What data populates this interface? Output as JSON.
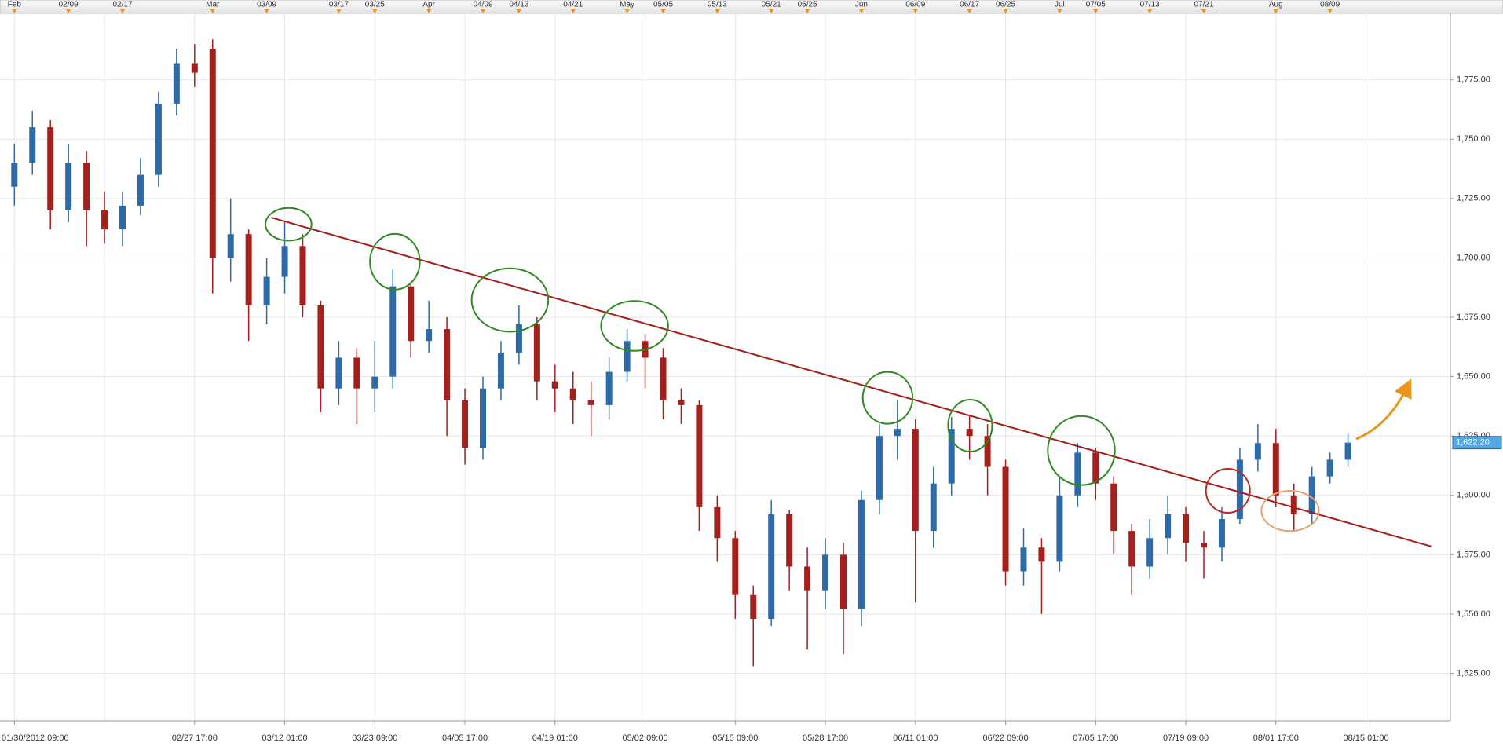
{
  "chart_data": {
    "type": "candlestick",
    "categories": [
      "01/30/2012 09:00",
      null,
      null,
      null,
      null,
      null,
      null,
      null,
      null,
      null,
      "02/27 17:00",
      null,
      null,
      null,
      null,
      "03/12 01:00",
      null,
      null,
      null,
      null,
      "03/23 09:00",
      null,
      null,
      null,
      null,
      "04/05 17:00",
      null,
      null,
      null,
      null,
      "04/19 01:00",
      null,
      null,
      null,
      null,
      "05/02 09:00",
      null,
      null,
      null,
      null,
      "05/15 09:00",
      null,
      null,
      null,
      null,
      "05/28 17:00",
      null,
      null,
      null,
      null,
      "06/11 01:00",
      null,
      null,
      null,
      null,
      "06/22 09:00",
      null,
      null,
      null,
      null,
      "07/05 17:00",
      null,
      null,
      null,
      null,
      "07/19 09:00",
      null,
      null,
      null,
      null,
      "08/01 17:00",
      null,
      null,
      null,
      null,
      "08/15 01:00",
      null,
      null,
      null,
      null
    ],
    "top_categories": [
      "Feb",
      null,
      null,
      "02/09",
      null,
      null,
      "02/17",
      null,
      null,
      null,
      null,
      "Mar",
      null,
      null,
      "03/09",
      null,
      null,
      null,
      "03/17",
      null,
      "03/25",
      null,
      null,
      "Apr",
      null,
      null,
      "04/09",
      null,
      "04/13",
      null,
      null,
      "04/21",
      null,
      null,
      "May",
      null,
      "05/05",
      null,
      null,
      "05/13",
      null,
      null,
      "05/21",
      null,
      "05/25",
      null,
      null,
      "Jun",
      null,
      null,
      "06/09",
      null,
      null,
      "06/17",
      null,
      "06/25",
      null,
      null,
      "Jul",
      null,
      "07/05",
      null,
      null,
      "07/13",
      null,
      null,
      "07/21",
      null,
      null,
      null,
      "Aug",
      null,
      null,
      "08/09",
      null,
      null,
      null,
      null,
      null,
      null
    ],
    "open": [
      1730,
      1740,
      1755,
      1720,
      1740,
      1720,
      1712,
      1722,
      1735,
      1765,
      1782,
      1788,
      1700,
      1710,
      1680,
      1692,
      1705,
      1680,
      1645,
      1658,
      1645,
      1650,
      1688,
      1665,
      1670,
      1640,
      1620,
      1645,
      1660,
      1672,
      1648,
      1645,
      1640,
      1638,
      1652,
      1665,
      1658,
      1640,
      1638,
      1595,
      1582,
      1558,
      1548,
      1592,
      1570,
      1560,
      1575,
      1552,
      1598,
      1625,
      1628,
      1585,
      1605,
      1628,
      1625,
      1612,
      1568,
      1578,
      1572,
      1600,
      1618,
      1605,
      1585,
      1570,
      1582,
      1592,
      1580,
      1578,
      1590,
      1615,
      1622,
      1600,
      1592,
      1608,
      1615,
      null,
      null,
      null,
      null,
      null
    ],
    "high": [
      1748,
      1762,
      1758,
      1748,
      1745,
      1728,
      1728,
      1742,
      1770,
      1788,
      1790,
      1792,
      1725,
      1712,
      1700,
      1715,
      1710,
      1682,
      1665,
      1662,
      1665,
      1695,
      1690,
      1682,
      1675,
      1645,
      1650,
      1665,
      1680,
      1675,
      1655,
      1652,
      1648,
      1658,
      1670,
      1668,
      1662,
      1645,
      1640,
      1600,
      1585,
      1562,
      1598,
      1594,
      1578,
      1582,
      1580,
      1602,
      1630,
      1640,
      1632,
      1612,
      1633,
      1634,
      1630,
      1615,
      1586,
      1582,
      1608,
      1622,
      1620,
      1608,
      1588,
      1590,
      1600,
      1595,
      1585,
      1595,
      1620,
      1630,
      1628,
      1605,
      1612,
      1618,
      1626,
      null,
      null,
      null,
      null,
      null
    ],
    "low": [
      1722,
      1735,
      1712,
      1715,
      1705,
      1706,
      1705,
      1718,
      1730,
      1760,
      1772,
      1685,
      1690,
      1665,
      1672,
      1685,
      1675,
      1635,
      1638,
      1630,
      1635,
      1645,
      1658,
      1660,
      1625,
      1613,
      1615,
      1640,
      1655,
      1640,
      1635,
      1630,
      1625,
      1632,
      1648,
      1645,
      1632,
      1630,
      1585,
      1572,
      1548,
      1528,
      1545,
      1560,
      1535,
      1552,
      1533,
      1545,
      1592,
      1615,
      1555,
      1578,
      1600,
      1615,
      1600,
      1562,
      1562,
      1550,
      1568,
      1595,
      1598,
      1575,
      1558,
      1565,
      1575,
      1572,
      1565,
      1572,
      1588,
      1610,
      1595,
      1585,
      1588,
      1605,
      1612,
      null,
      null,
      null,
      null,
      null
    ],
    "close": [
      1740,
      1755,
      1720,
      1740,
      1720,
      1712,
      1722,
      1735,
      1765,
      1782,
      1778,
      1700,
      1710,
      1680,
      1692,
      1705,
      1680,
      1645,
      1658,
      1645,
      1650,
      1688,
      1665,
      1670,
      1640,
      1620,
      1645,
      1660,
      1672,
      1648,
      1645,
      1640,
      1638,
      1652,
      1665,
      1658,
      1640,
      1638,
      1595,
      1582,
      1558,
      1548,
      1592,
      1570,
      1560,
      1575,
      1552,
      1598,
      1625,
      1628,
      1585,
      1605,
      1628,
      1625,
      1612,
      1568,
      1578,
      1572,
      1600,
      1618,
      1605,
      1585,
      1570,
      1582,
      1592,
      1580,
      1578,
      1590,
      1615,
      1622,
      1600,
      1592,
      1608,
      1615,
      1622.2,
      null,
      null,
      null,
      null,
      null
    ],
    "up_color": "#2d6aa8",
    "down_color": "#a3201c",
    "ylim": [
      1505,
      1803
    ],
    "yticks": [
      {
        "value": 1525,
        "label": "1,525.00"
      },
      {
        "value": 1550,
        "label": "1,550.00"
      },
      {
        "value": 1575,
        "label": "1,575.00"
      },
      {
        "value": 1600,
        "label": "1,600.00"
      },
      {
        "value": 1625,
        "label": "1,625.00"
      },
      {
        "value": 1650,
        "label": "1,650.00"
      },
      {
        "value": 1675,
        "label": "1,675.00"
      },
      {
        "value": 1700,
        "label": "1,700.00"
      },
      {
        "value": 1725,
        "label": "1,725.00"
      },
      {
        "value": 1750,
        "label": "1,750.00"
      },
      {
        "value": 1775,
        "label": "1,775.00"
      }
    ],
    "last_price": {
      "value": 1622.2,
      "label": "1,622.20"
    },
    "grid": true
  }
}
